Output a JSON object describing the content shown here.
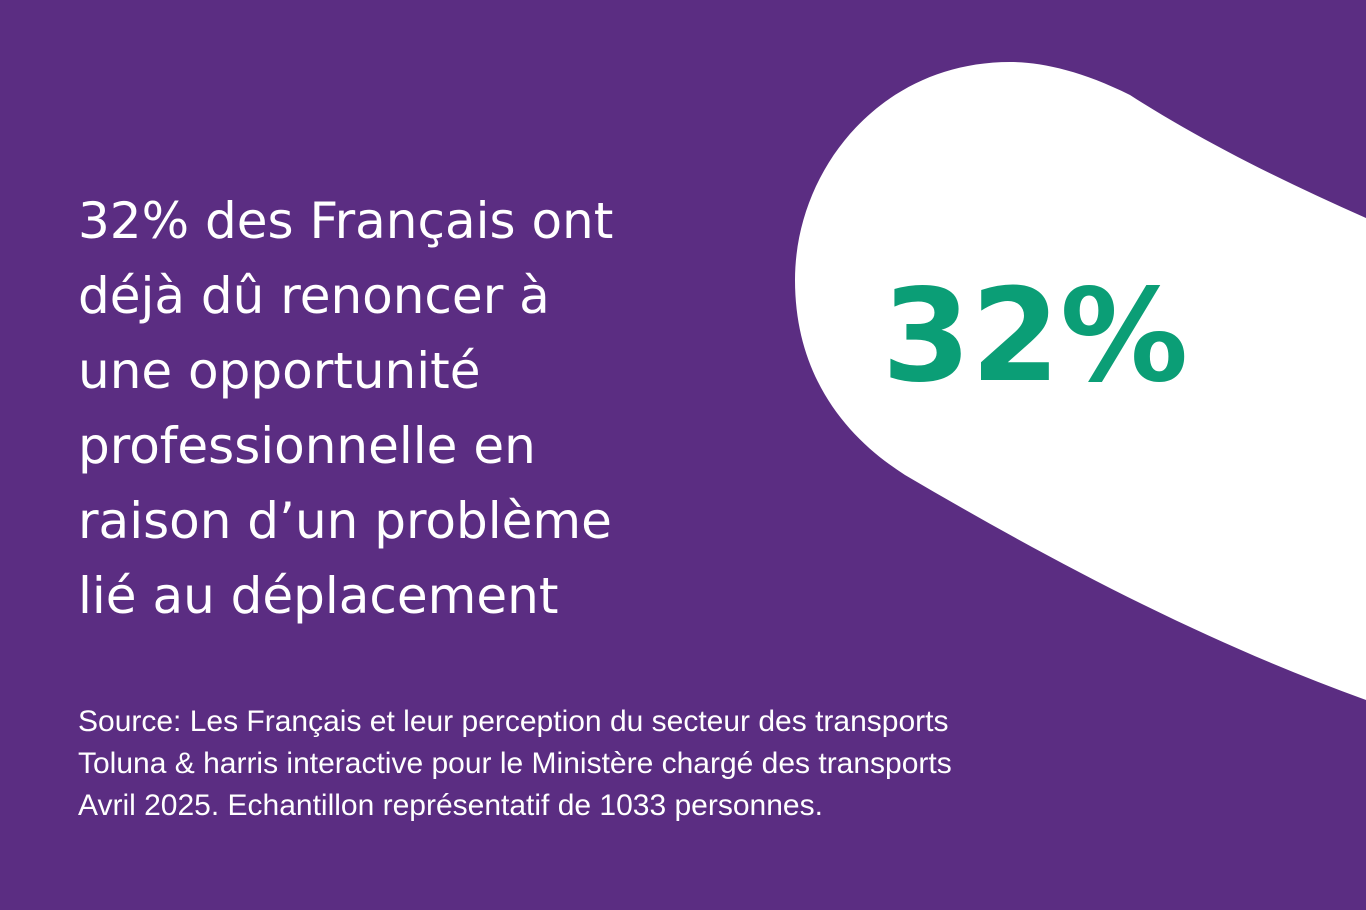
{
  "headline": {
    "lines": [
      "32% des Français ont",
      "déjà dû renoncer à",
      "une opportunité",
      "professionnelle en",
      "raison d’un problème",
      "lié au déplacement"
    ]
  },
  "stat": "32%",
  "source": {
    "lines": [
      "Source: Les Français et leur perception du secteur des transports",
      "Toluna & harris interactive pour le Ministère chargé des transports",
      "Avril 2025. Echantillon représentatif de 1033 personnes."
    ]
  }
}
